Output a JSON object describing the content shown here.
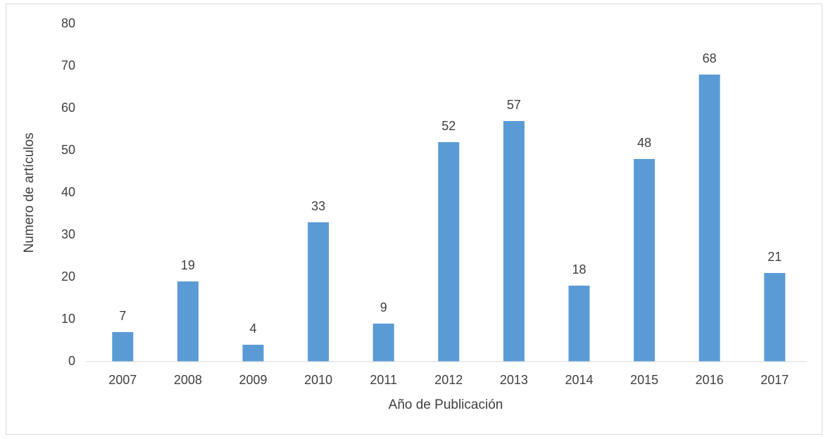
{
  "chart_data": {
    "type": "bar",
    "categories": [
      "2007",
      "2008",
      "2009",
      "2010",
      "2011",
      "2012",
      "2013",
      "2014",
      "2015",
      "2016",
      "2017"
    ],
    "values": [
      7,
      19,
      4,
      33,
      9,
      52,
      57,
      18,
      48,
      68,
      21
    ],
    "color": "#5b9bd5",
    "ylim": [
      0,
      80
    ],
    "yticks": [
      0,
      10,
      20,
      30,
      40,
      50,
      60,
      70,
      80
    ],
    "grid": false,
    "x_label": "Año de Publicación",
    "y_label": "Numero de artículos"
  }
}
